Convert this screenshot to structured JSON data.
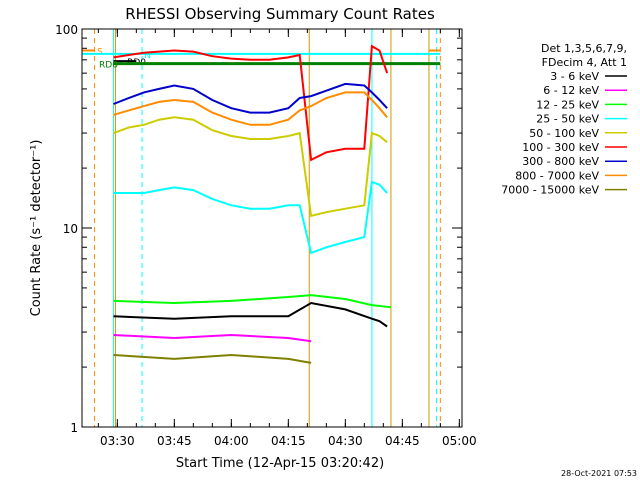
{
  "chart_data": {
    "type": "line",
    "title": "RHESSI Observing Summary Count Rates",
    "xlabel": "Start Time (12-Apr-15 03:20:42)",
    "ylabel": "Count Rate (s⁻¹ detector⁻¹)",
    "y_scale": "log",
    "ylim": [
      1,
      100
    ],
    "y_ticks": [
      {
        "value": 1,
        "label": "1"
      },
      {
        "value": 10,
        "label": "10"
      },
      {
        "value": 100,
        "label": "100"
      }
    ],
    "xlim": [
      "03:20:42",
      "05:00:42"
    ],
    "x_ticks": [
      {
        "time": "03:30",
        "label": "03:30"
      },
      {
        "time": "03:45",
        "label": "03:45"
      },
      {
        "time": "04:00",
        "label": "04:00"
      },
      {
        "time": "04:15",
        "label": "04:15"
      },
      {
        "time": "04:30",
        "label": "04:30"
      },
      {
        "time": "04:45",
        "label": "04:45"
      },
      {
        "time": "05:00",
        "label": "05:00"
      }
    ],
    "legend": {
      "placement": "right",
      "header": [
        "Det 1,3,5,6,7,9,",
        "FDecim 4, Att 1"
      ]
    },
    "series": [
      {
        "name": "3 - 6 keV",
        "color": "#000000",
        "x": [
          "03:29",
          "03:45",
          "04:00",
          "04:15",
          "04:21",
          "04:30",
          "04:37",
          "04:39",
          "04:41"
        ],
        "y": [
          3.6,
          3.5,
          3.6,
          3.6,
          4.2,
          3.9,
          3.5,
          3.4,
          3.2
        ]
      },
      {
        "name": "6 - 12 keV",
        "color": "#ff00ff",
        "x": [
          "03:29",
          "03:45",
          "04:00",
          "04:15",
          "04:21"
        ],
        "y": [
          2.9,
          2.8,
          2.9,
          2.8,
          2.7
        ]
      },
      {
        "name": "12 - 25 keV",
        "color": "#00ff00",
        "x": [
          "03:29",
          "03:45",
          "04:00",
          "04:15",
          "04:21",
          "04:30",
          "04:37",
          "04:42"
        ],
        "y": [
          4.3,
          4.2,
          4.3,
          4.5,
          4.6,
          4.4,
          4.1,
          4.0
        ]
      },
      {
        "name": "25 - 50 keV",
        "color": "#00ffff",
        "x": [
          "03:29",
          "03:33",
          "03:37",
          "03:41",
          "03:45",
          "03:50",
          "03:55",
          "04:00",
          "04:05",
          "04:10",
          "04:15",
          "04:18",
          "04:21",
          "04:25",
          "04:30",
          "04:35",
          "04:37",
          "04:39",
          "04:41"
        ],
        "y": [
          15,
          15,
          15,
          15.5,
          16,
          15.5,
          14,
          13,
          12.5,
          12.5,
          13,
          13,
          7.5,
          8,
          8.5,
          9,
          17,
          16.5,
          15
        ]
      },
      {
        "name": "50 - 100 keV",
        "color": "#cccc00",
        "x": [
          "03:29",
          "03:33",
          "03:37",
          "03:41",
          "03:45",
          "03:50",
          "03:55",
          "04:00",
          "04:05",
          "04:10",
          "04:15",
          "04:18",
          "04:21",
          "04:25",
          "04:30",
          "04:35",
          "04:37",
          "04:39",
          "04:41"
        ],
        "y": [
          30,
          32,
          33,
          35,
          36,
          35,
          31,
          29,
          28,
          28,
          29,
          30,
          11.5,
          12,
          12.5,
          13,
          30,
          29,
          27
        ]
      },
      {
        "name": "100 - 300 keV",
        "color": "#ff0000",
        "x": [
          "03:29",
          "03:33",
          "03:37",
          "03:41",
          "03:45",
          "03:50",
          "03:55",
          "04:00",
          "04:05",
          "04:10",
          "04:15",
          "04:18",
          "04:21",
          "04:25",
          "04:30",
          "04:35",
          "04:37",
          "04:39",
          "04:41"
        ],
        "y": [
          72,
          74,
          76,
          77,
          78,
          77,
          73,
          71,
          70,
          70,
          72,
          74,
          22,
          24,
          25,
          25,
          82,
          78,
          60
        ]
      },
      {
        "name": "300 - 800 keV",
        "color": "#0000cc",
        "x": [
          "03:29",
          "03:33",
          "03:37",
          "03:41",
          "03:45",
          "03:50",
          "03:55",
          "04:00",
          "04:05",
          "04:10",
          "04:15",
          "04:18",
          "04:21",
          "04:25",
          "04:30",
          "04:35",
          "04:37",
          "04:39",
          "04:41"
        ],
        "y": [
          42,
          45,
          48,
          50,
          52,
          50,
          44,
          40,
          38,
          38,
          40,
          45,
          46,
          49,
          53,
          52,
          48,
          44,
          40
        ]
      },
      {
        "name": "800 - 7000 keV",
        "color": "#ff8c00",
        "x": [
          "03:29",
          "03:33",
          "03:37",
          "03:41",
          "03:45",
          "03:50",
          "03:55",
          "04:00",
          "04:05",
          "04:10",
          "04:15",
          "04:18",
          "04:21",
          "04:25",
          "04:30",
          "04:35",
          "04:37",
          "04:39",
          "04:41"
        ],
        "y": [
          37,
          39,
          41,
          43,
          44,
          43,
          38,
          35,
          33,
          33,
          35,
          39,
          41,
          45,
          48,
          48,
          44,
          40,
          36
        ]
      },
      {
        "name": "7000 - 15000 keV",
        "color": "#808000",
        "x": [
          "03:29",
          "03:45",
          "04:00",
          "04:15",
          "04:21"
        ],
        "y": [
          2.3,
          2.2,
          2.3,
          2.2,
          2.1
        ]
      }
    ],
    "flag_lines": [
      {
        "label": "S",
        "color": "#ff8c00",
        "y": 78,
        "x_start": "03:20:42",
        "x_end": "03:24",
        "x_start2": "04:52",
        "x_end2": "04:55"
      },
      {
        "label": "N",
        "color": "#00ffff",
        "y": 75,
        "x_start": "03:20:42",
        "x_end": "04:55"
      },
      {
        "label": "RD0",
        "color": "#000000",
        "y": 69,
        "x_start": "03:29",
        "x_end": "03:35"
      },
      {
        "label": "RD6",
        "color": "#008000",
        "y": 67,
        "x_start": "03:29",
        "x_end": "04:55"
      }
    ],
    "vertical_markers": [
      {
        "color": "#ff8c00",
        "style": "dashed",
        "time": "03:24"
      },
      {
        "color": "#00ffff",
        "style": "solid",
        "time": "03:29"
      },
      {
        "color": "#cc9900",
        "style": "solid",
        "time": "03:29:30"
      },
      {
        "color": "#00ffff",
        "style": "dashed",
        "time": "03:36:30"
      },
      {
        "color": "#cc9900",
        "style": "solid",
        "time": "04:20:30"
      },
      {
        "color": "#00ffff",
        "style": "solid",
        "time": "04:37"
      },
      {
        "color": "#cc9900",
        "style": "solid",
        "time": "04:42"
      },
      {
        "color": "#cc9900",
        "style": "solid",
        "time": "04:52"
      },
      {
        "color": "#00ffff",
        "style": "dashed",
        "time": "04:54"
      },
      {
        "color": "#ff8c00",
        "style": "dashed",
        "time": "04:55"
      }
    ],
    "footer": "28-Oct-2021 07:53"
  }
}
